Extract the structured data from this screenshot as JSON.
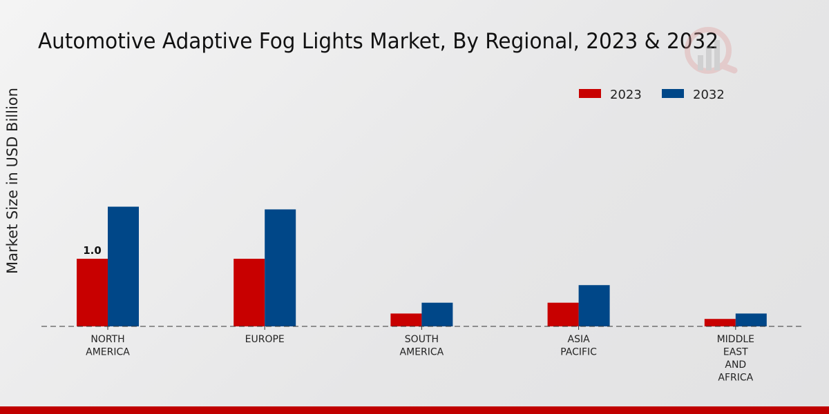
{
  "chart_data": {
    "type": "bar",
    "title": "Automotive Adaptive Fog Lights Market, By Regional, 2023 & 2032",
    "xlabel": "",
    "ylabel": "Market Size in USD Billion",
    "categories": [
      [
        "NORTH",
        "AMERICA"
      ],
      [
        "EUROPE"
      ],
      [
        "SOUTH",
        "AMERICA"
      ],
      [
        "ASIA",
        "PACIFIC"
      ],
      [
        "MIDDLE",
        "EAST",
        "AND",
        "AFRICA"
      ]
    ],
    "series": [
      {
        "name": "2023",
        "color": "#c80000",
        "values": [
          1.0,
          1.0,
          0.19,
          0.35,
          0.11
        ]
      },
      {
        "name": "2032",
        "color": "#004788",
        "values": [
          1.77,
          1.73,
          0.35,
          0.61,
          0.19
        ]
      }
    ],
    "data_labels": [
      {
        "series": 0,
        "index": 0,
        "text": "1.0"
      }
    ],
    "ylim": [
      0,
      3.85
    ],
    "grid": false,
    "legend_position": "top-right"
  }
}
